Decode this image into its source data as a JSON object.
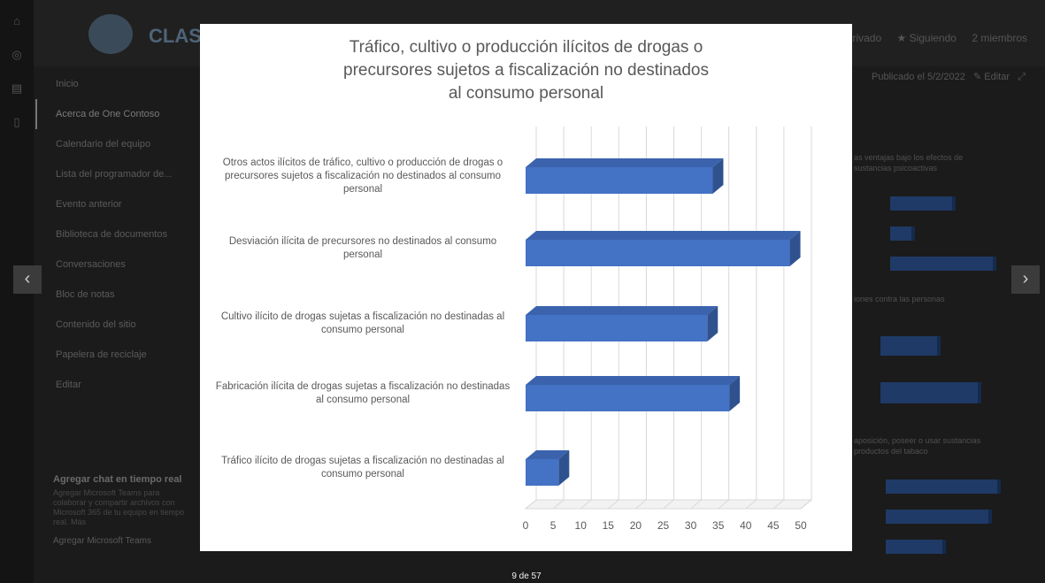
{
  "app": {
    "site_title": "CLASIN Seg",
    "header_actions": [
      "rivado",
      "★ Siguiendo",
      "2 miembros"
    ],
    "published": "Publicado el 5/2/2022",
    "edit_label": "Editar"
  },
  "nav": {
    "items": [
      {
        "label": "Inicio"
      },
      {
        "label": "Acerca de One Contoso"
      },
      {
        "label": "Calendario del equipo"
      },
      {
        "label": "Lista del programador de..."
      },
      {
        "label": "Evento anterior"
      },
      {
        "label": "Biblioteca de documentos"
      },
      {
        "label": "Conversaciones"
      },
      {
        "label": "Bloc de notas"
      },
      {
        "label": "Contenido del sitio"
      },
      {
        "label": "Papelera de reciclaje"
      },
      {
        "label": "Editar"
      }
    ]
  },
  "chat": {
    "title": "Agregar chat en tiempo real",
    "description": "Agregar Microsoft Teams para colaborar y compartir archivos con Microsoft 365 de tu equipo en tiempo real. Más",
    "link": "Agregar Microsoft Teams"
  },
  "background_charts": {
    "titles": [
      "as ventajas bajo los efectos de sustancias psicoactivas",
      "iones contra las personas",
      "aposición, poseer o usar sustancias productos del tabaco"
    ]
  },
  "viewer": {
    "counter": "9 de 57",
    "prev_icon": "chevron-left-icon",
    "next_icon": "chevron-right-icon"
  },
  "chart_data": {
    "type": "bar",
    "orientation": "horizontal",
    "style": "3d",
    "title": "Tráfico, cultivo o producción ilícitos de drogas o precursores sujetos a fiscalización no destinados al consumo personal",
    "title_lines": [
      "Tráfico, cultivo o producción ilícitos de drogas o",
      "precursores sujetos a fiscalización no destinados",
      "al consumo personal"
    ],
    "categories": [
      {
        "lines": [
          "Otros actos ilícitos de tráfico, cultivo o producción de drogas o",
          "precursores sujetos a fiscalización no destinados al consumo",
          "personal"
        ]
      },
      {
        "lines": [
          "Desviación ilícita de precursores no destinados al consumo",
          "personal"
        ]
      },
      {
        "lines": [
          "Cultivo ilícito de drogas sujetas a fiscalización no destinadas al",
          "consumo personal"
        ]
      },
      {
        "lines": [
          "Fabricación ilícita de drogas sujetas a fiscalización no destinadas",
          "al consumo personal"
        ]
      },
      {
        "lines": [
          "Tráfico ilícito de drogas sujetas a fiscalización no destinadas al",
          "consumo personal"
        ]
      }
    ],
    "values": [
      34,
      48,
      33,
      37,
      6
    ],
    "xlim": [
      0,
      50
    ],
    "xticks": [
      "0",
      "5",
      "10",
      "15",
      "20",
      "25",
      "30",
      "35",
      "40",
      "45",
      "50"
    ],
    "grid": true,
    "legend": "none",
    "bar_color": "#4472c4",
    "bar_side_color": "#2f528f",
    "bar_top_color": "#3b63ad"
  }
}
